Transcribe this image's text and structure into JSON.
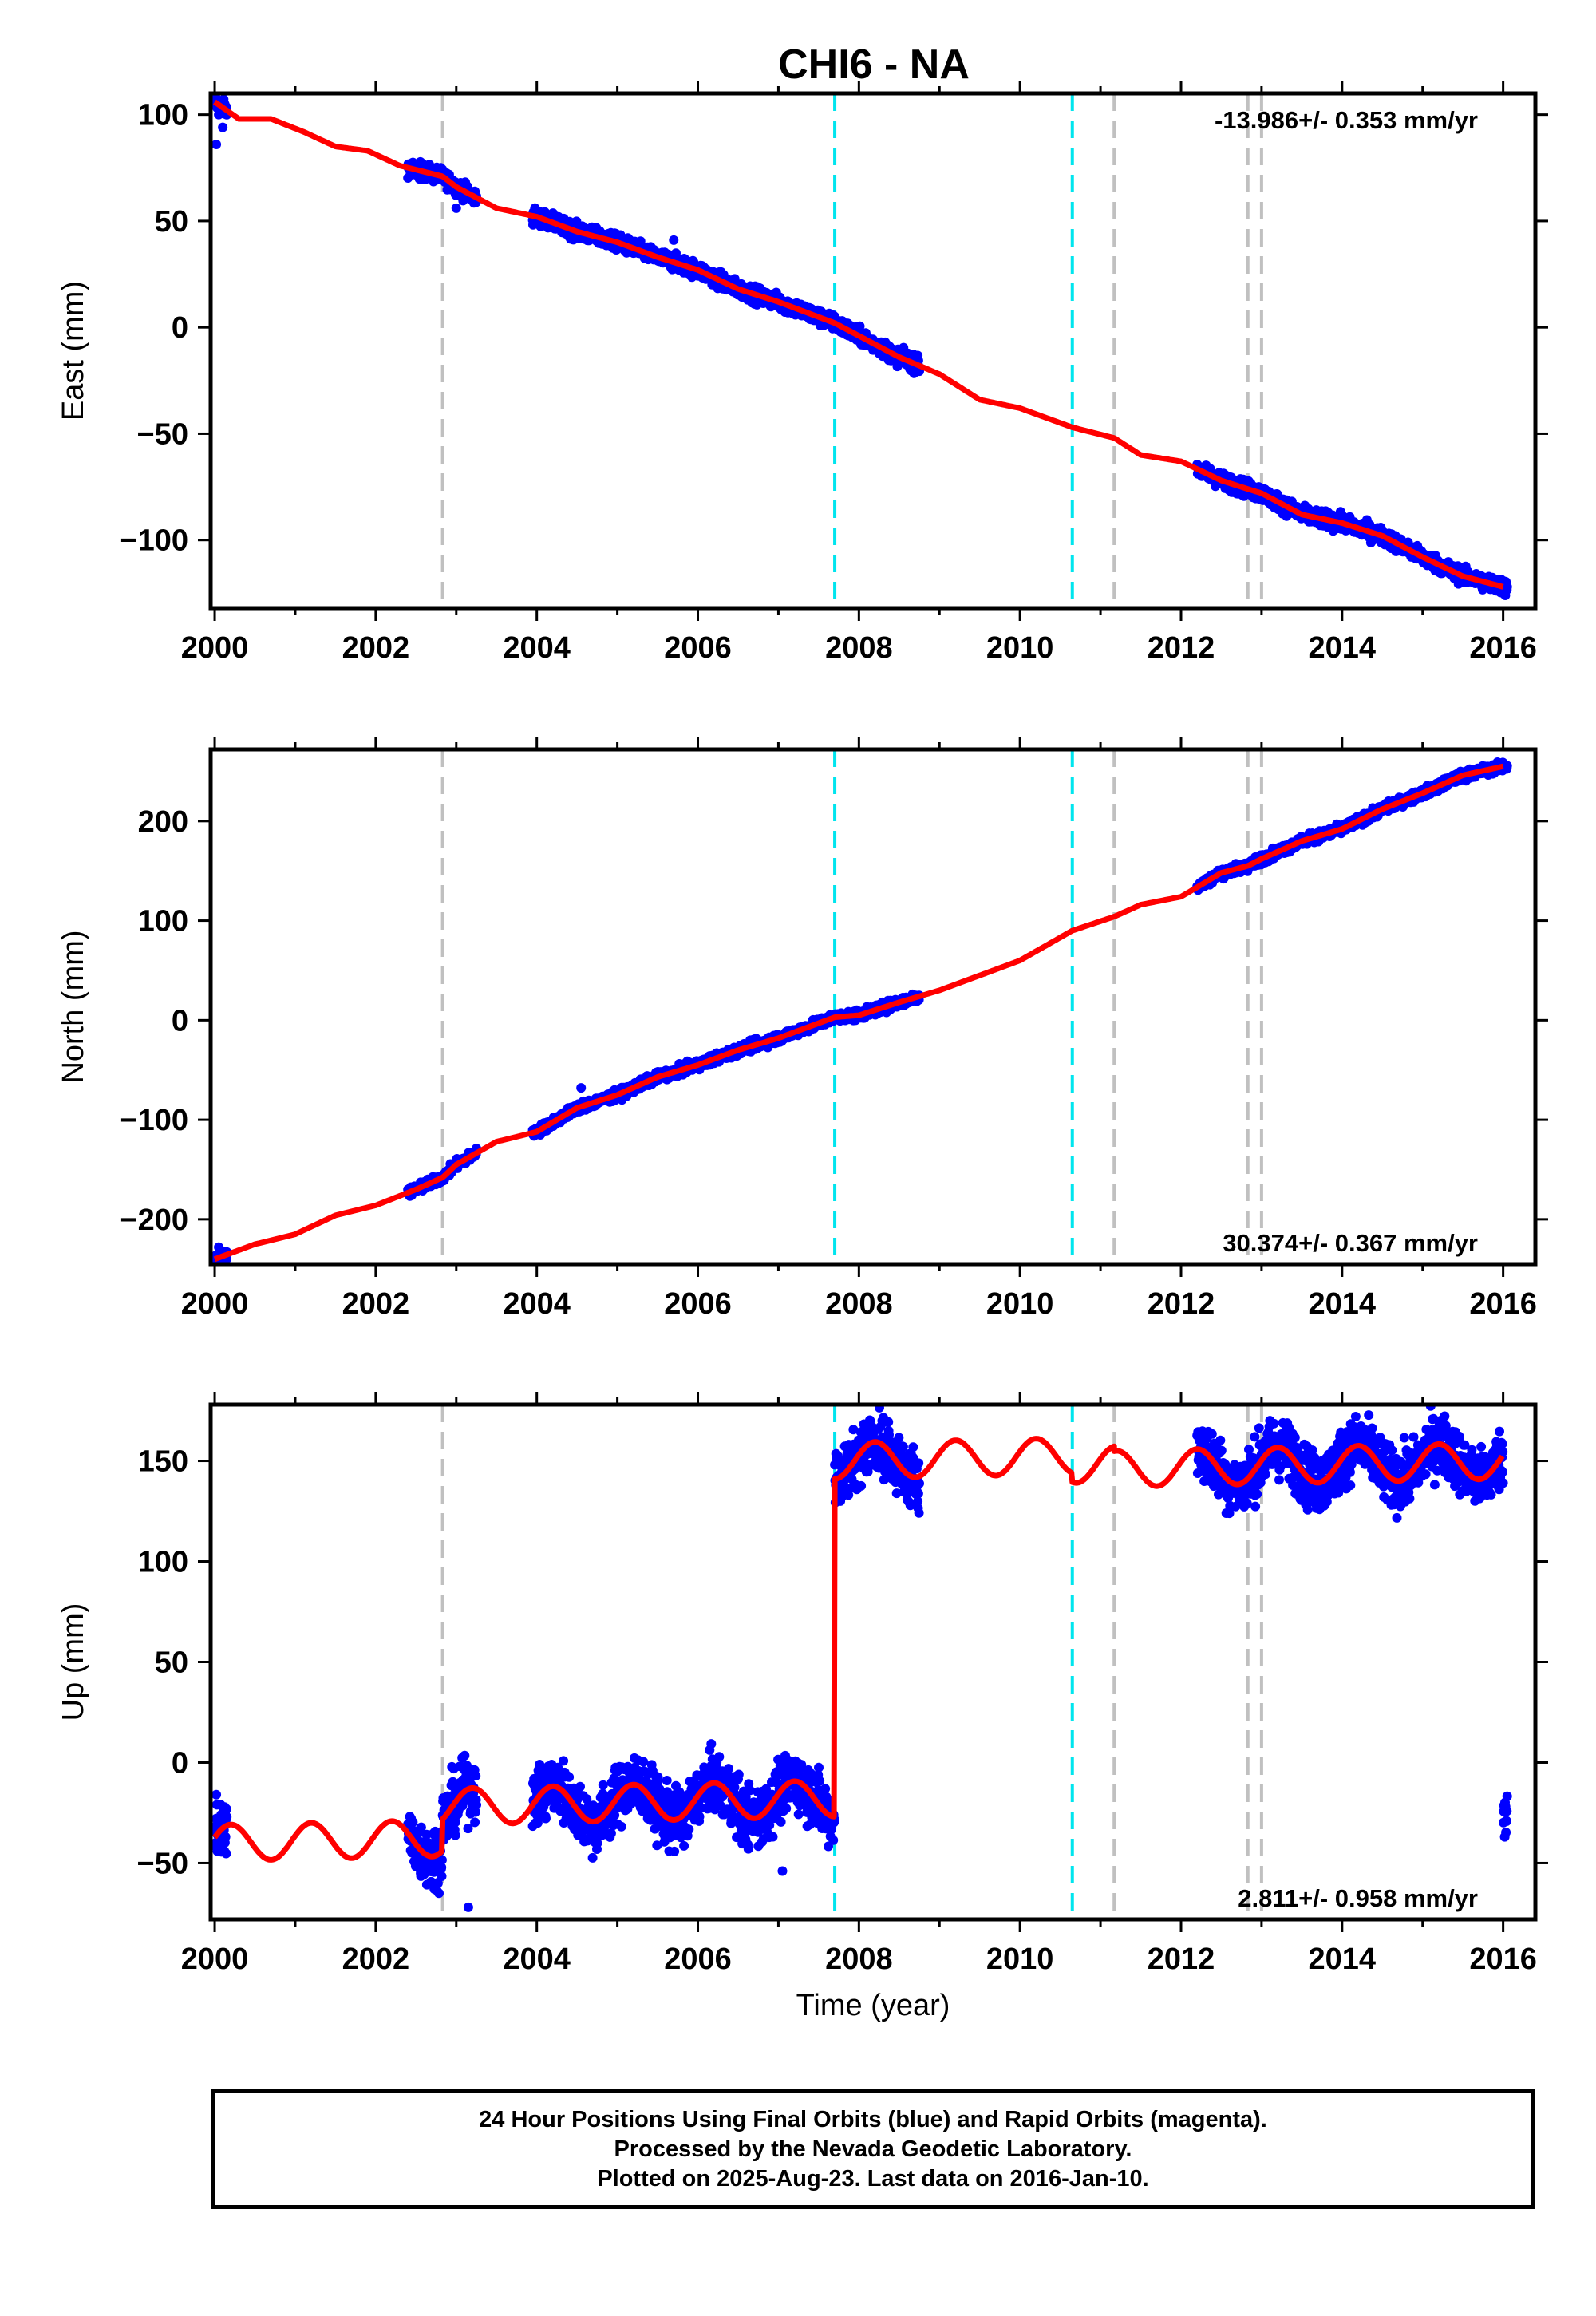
{
  "title": "CHI6 - NA",
  "colors": {
    "data_points": "#0000ff",
    "model_line": "#ff0000",
    "event_gray": "#c0c0c0",
    "event_cyan": "#00e5ee",
    "frame": "#000000"
  },
  "events": {
    "gray": [
      2002.83,
      2011.17,
      2012.83,
      2013.0
    ],
    "cyan": [
      2007.7,
      2010.65
    ]
  },
  "chart_data": [
    {
      "type": "scatter",
      "name": "east",
      "title": "CHI6 - NA",
      "xlabel": "",
      "ylabel": "East (mm)",
      "xlim": [
        1999.95,
        2016.4
      ],
      "ylim": [
        -132,
        110
      ],
      "xticks": [
        2000,
        2002,
        2004,
        2006,
        2008,
        2010,
        2012,
        2014,
        2016
      ],
      "yticks": [
        -100,
        -50,
        0,
        50,
        100
      ],
      "rate_label": "-13.986+/- 0.353 mm/yr",
      "rate_position": "top-right",
      "model_line": {
        "x": [
          2000.0,
          2000.3,
          2000.7,
          2001.1,
          2001.5,
          2001.9,
          2002.3,
          2002.83,
          2003.0,
          2003.5,
          2004.0,
          2004.5,
          2005.0,
          2005.5,
          2006.0,
          2006.5,
          2007.0,
          2007.7,
          2008.0,
          2008.5,
          2009.0,
          2009.5,
          2010.0,
          2010.65,
          2011.17,
          2011.5,
          2012.0,
          2012.5,
          2012.83,
          2013.0,
          2013.5,
          2014.0,
          2014.5,
          2015.0,
          2015.5,
          2016.0
        ],
        "y": [
          106,
          98,
          98,
          92,
          85,
          83,
          76,
          71,
          66,
          56,
          52,
          45,
          40,
          33,
          27,
          18,
          12,
          2,
          -4,
          -14,
          -22,
          -34,
          -38,
          -47,
          -52,
          -60,
          -63,
          -72,
          -76,
          -78,
          -88,
          -92,
          -98,
          -108,
          -117,
          -122
        ]
      },
      "points": {
        "segments": [
          [
            2000.0,
            2000.15
          ],
          [
            2002.4,
            2003.25
          ],
          [
            2003.95,
            2008.75
          ],
          [
            2012.2,
            2016.05
          ]
        ],
        "scatter_mm": 3.5,
        "gap_points": [
          [
            2000.02,
            86
          ],
          [
            2000.05,
            100
          ],
          [
            2000.1,
            94
          ],
          [
            2003.0,
            56
          ],
          [
            2005.7,
            41
          ]
        ]
      }
    },
    {
      "type": "scatter",
      "name": "north",
      "xlabel": "",
      "ylabel": "North (mm)",
      "xlim": [
        1999.95,
        2016.4
      ],
      "ylim": [
        -245,
        272
      ],
      "xticks": [
        2000,
        2002,
        2004,
        2006,
        2008,
        2010,
        2012,
        2014,
        2016
      ],
      "yticks": [
        -200,
        -100,
        0,
        100,
        200
      ],
      "rate_label": "30.374+/- 0.367 mm/yr",
      "rate_position": "bottom-right",
      "model_line": {
        "x": [
          2000.0,
          2000.5,
          2001.0,
          2001.5,
          2002.0,
          2002.5,
          2002.83,
          2003.0,
          2003.5,
          2004.0,
          2004.5,
          2005.0,
          2005.5,
          2006.0,
          2006.5,
          2007.0,
          2007.7,
          2008.0,
          2008.5,
          2009.0,
          2009.5,
          2010.0,
          2010.65,
          2011.17,
          2011.5,
          2012.0,
          2012.5,
          2012.83,
          2013.0,
          2013.5,
          2014.0,
          2014.5,
          2015.0,
          2015.5,
          2016.0
        ],
        "y": [
          -240,
          -225,
          -215,
          -196,
          -186,
          -170,
          -158,
          -145,
          -122,
          -112,
          -88,
          -75,
          -57,
          -45,
          -30,
          -18,
          3,
          5,
          18,
          30,
          45,
          60,
          90,
          104,
          116,
          124,
          148,
          155,
          162,
          180,
          192,
          212,
          228,
          246,
          255
        ]
      },
      "points": {
        "segments": [
          [
            2000.0,
            2000.15
          ],
          [
            2002.4,
            2003.25
          ],
          [
            2003.95,
            2008.75
          ],
          [
            2012.2,
            2016.05
          ]
        ],
        "scatter_mm": 4.5,
        "gap_points": [
          [
            2000.05,
            -228
          ],
          [
            2000.1,
            -232
          ],
          [
            2004.55,
            -68
          ]
        ]
      }
    },
    {
      "type": "scatter",
      "name": "up",
      "xlabel": "Time (year)",
      "ylabel": "Up (mm)",
      "xlim": [
        1999.95,
        2016.4
      ],
      "ylim": [
        -78,
        178
      ],
      "xticks": [
        2000,
        2002,
        2004,
        2006,
        2008,
        2010,
        2012,
        2014,
        2016
      ],
      "yticks": [
        -50,
        0,
        50,
        100,
        150
      ],
      "rate_label": "2.811+/- 0.958 mm/yr",
      "rate_position": "bottom-right",
      "model": {
        "trend_mm_per_yr": 2.811,
        "annual_amplitude_mm": 9,
        "base_segments": [
          {
            "from": 2000.0,
            "to": 2002.83,
            "offset": -40
          },
          {
            "from": 2002.83,
            "to": 2007.7,
            "offset": -22
          },
          {
            "from": 2007.7,
            "to": 2010.65,
            "offset": 150
          },
          {
            "from": 2010.65,
            "to": 2011.17,
            "offset": 148
          },
          {
            "from": 2011.17,
            "to": 2016.0,
            "offset": 146
          }
        ]
      },
      "points": {
        "segments": [
          [
            2000.0,
            2000.15
          ],
          [
            2002.4,
            2003.25
          ],
          [
            2003.95,
            2007.72
          ],
          [
            2007.72,
            2008.75
          ],
          [
            2012.2,
            2016.05
          ]
        ],
        "scatter_mm": 14,
        "gap_points": [
          [
            2000.02,
            -16
          ],
          [
            2000.08,
            -26
          ],
          [
            2000.12,
            -44
          ],
          [
            2003.15,
            -72
          ],
          [
            2003.05,
            -10
          ],
          [
            2007.05,
            -54
          ]
        ]
      }
    }
  ],
  "footer": {
    "line1": "24 Hour Positions Using Final Orbits (blue) and Rapid Orbits (magenta).",
    "line2": "Processed by the Nevada Geodetic Laboratory.",
    "line3": "Plotted on 2025-Aug-23. Last data on 2016-Jan-10."
  }
}
